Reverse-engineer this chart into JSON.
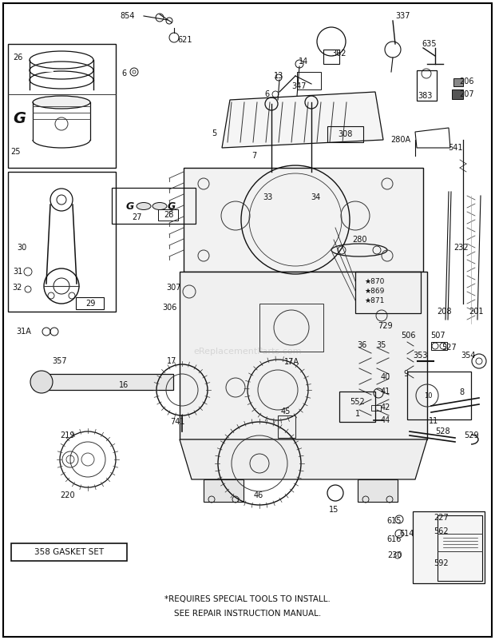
{
  "bg_color": "#ffffff",
  "text_color": "#111111",
  "footer_line1": "*REQUIRES SPECIAL TOOLS TO INSTALL.",
  "footer_line2": "SEE REPAIR INSTRUCTION MANUAL.",
  "gasket_label": "358 GASKET SET",
  "watermark": "eReplacementParts.com"
}
